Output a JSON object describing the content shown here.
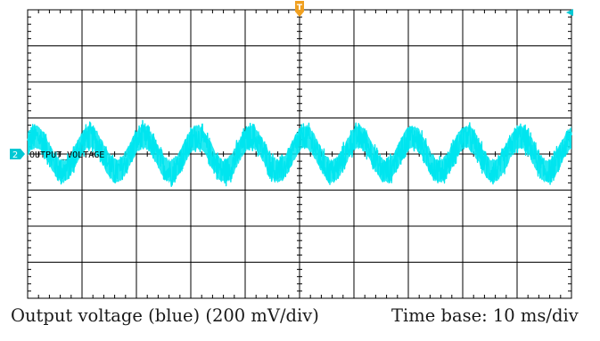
{
  "chart_data": {
    "type": "line",
    "grid": "on",
    "divisions": {
      "horizontal": 10,
      "vertical": 8
    },
    "channel": {
      "number": "2",
      "label": "OUTPUT_VOLTAGE",
      "color": "#00e5ee",
      "volts_per_div": "200 mV/div"
    },
    "trigger_marker": "T",
    "time_base": "10 ms/div",
    "xlim": [
      -50,
      50
    ],
    "ylim": [
      -800,
      800
    ],
    "x_unit": "ms",
    "y_unit": "mV",
    "waveform": {
      "period_ms": 9.9,
      "amplitude_mV": 95,
      "noise_envelope_mV": 95,
      "first_peak_ms": -48.5,
      "offset_mV": 0
    }
  },
  "captions": {
    "left": "Output voltage (blue) (200 mV/div)",
    "right": "Time base: 10 ms/div"
  },
  "colors": {
    "grid": "#000000",
    "trace": "#00e5ee",
    "trigger": "#f0a020",
    "channel_marker": "#00c8d4"
  }
}
